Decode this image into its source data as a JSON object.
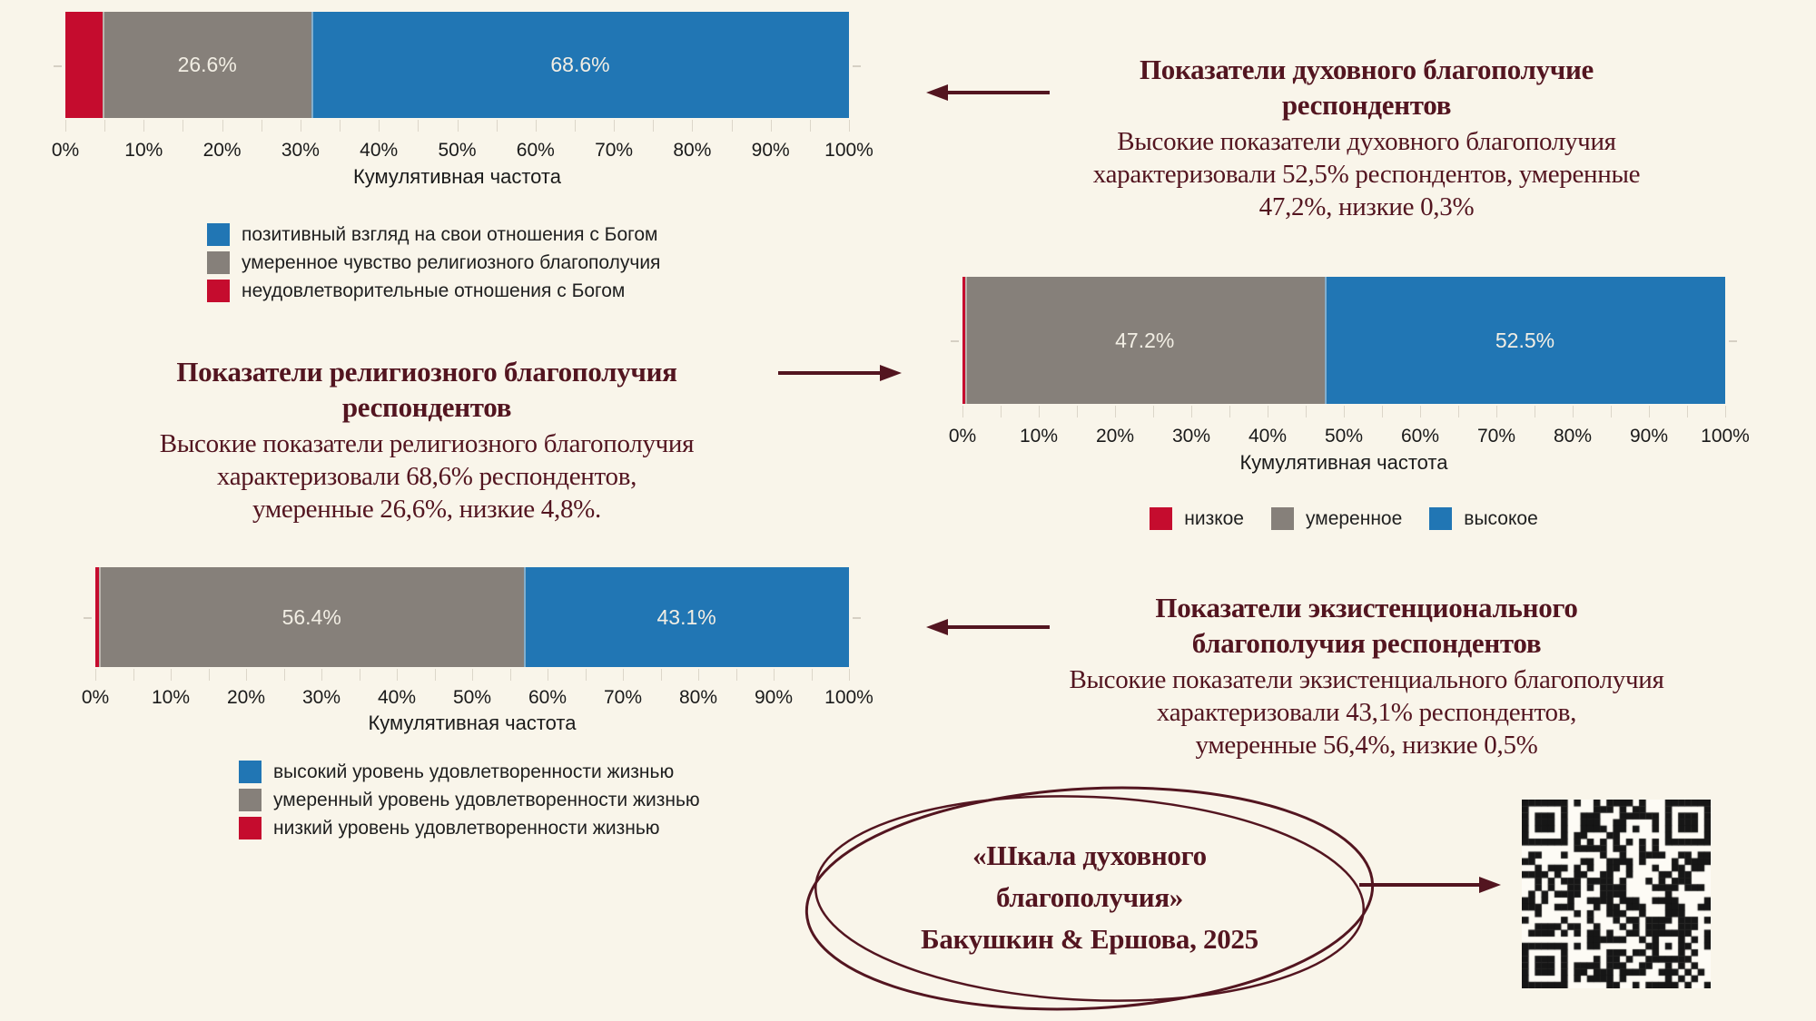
{
  "colors": {
    "background": "#f9f5ea",
    "blue": "#2176b4",
    "gray": "#86807a",
    "red": "#c50c2e",
    "maroon": "#531520",
    "bar_label": "#f2eee4",
    "tick_text": "#1a1a1a"
  },
  "icons": {
    "arrow_left": "arrow-left-icon",
    "arrow_right": "arrow-right-icon",
    "oval": "hand-drawn-oval",
    "qr": "qr-code"
  },
  "chart_data": [
    {
      "id": "religious-wellbeing",
      "type": "bar",
      "orientation": "horizontal_stacked",
      "xlabel": "Кумулятивная частота",
      "xlim": [
        0,
        100
      ],
      "x_tick_labels": [
        "0%",
        "10%",
        "20%",
        "30%",
        "40%",
        "50%",
        "60%",
        "70%",
        "80%",
        "90%",
        "100%"
      ],
      "segments": [
        {
          "name": "неудовлетворительные отношения с Богом",
          "value": 4.8,
          "color": "red",
          "label": ""
        },
        {
          "name": "умеренное чувство религиозного благополучия",
          "value": 26.6,
          "color": "gray",
          "label": "26.6%"
        },
        {
          "name": "позитивный взгляд на свои отношения с Богом",
          "value": 68.6,
          "color": "blue",
          "label": "68.6%"
        }
      ],
      "legend": {
        "layout": "vertical",
        "items": [
          {
            "color": "blue",
            "label": "позитивный взгляд на свои отношения с Богом"
          },
          {
            "color": "gray",
            "label": "умеренное чувство религиозного благополучия"
          },
          {
            "color": "red",
            "label": "неудовлетворительные отношения с Богом"
          }
        ]
      }
    },
    {
      "id": "spiritual-wellbeing",
      "type": "bar",
      "orientation": "horizontal_stacked",
      "xlabel": "Кумулятивная частота",
      "xlim": [
        0,
        100
      ],
      "x_tick_labels": [
        "0%",
        "10%",
        "20%",
        "30%",
        "40%",
        "50%",
        "60%",
        "70%",
        "80%",
        "90%",
        "100%"
      ],
      "segments": [
        {
          "name": "низкое",
          "value": 0.3,
          "color": "red",
          "label": ""
        },
        {
          "name": "умеренное",
          "value": 47.2,
          "color": "gray",
          "label": "47.2%"
        },
        {
          "name": "высокое",
          "value": 52.5,
          "color": "blue",
          "label": "52.5%"
        }
      ],
      "legend": {
        "layout": "horizontal",
        "items": [
          {
            "color": "red",
            "label": "низкое"
          },
          {
            "color": "gray",
            "label": "умеренное"
          },
          {
            "color": "blue",
            "label": "высокое"
          }
        ]
      }
    },
    {
      "id": "existential-wellbeing",
      "type": "bar",
      "orientation": "horizontal_stacked",
      "xlabel": "Кумулятивная частота",
      "xlim": [
        0,
        100
      ],
      "x_tick_labels": [
        "0%",
        "10%",
        "20%",
        "30%",
        "40%",
        "50%",
        "60%",
        "70%",
        "80%",
        "90%",
        "100%"
      ],
      "segments": [
        {
          "name": "низкий уровень удовлетворенности жизнью",
          "value": 0.5,
          "color": "red",
          "label": ""
        },
        {
          "name": "умеренный уровень удовлетворенности жизнью",
          "value": 56.4,
          "color": "gray",
          "label": "56.4%"
        },
        {
          "name": "высокий уровень удовлетворенности жизнью",
          "value": 43.1,
          "color": "blue",
          "label": "43.1%"
        }
      ],
      "legend": {
        "layout": "vertical",
        "items": [
          {
            "color": "blue",
            "label": "высокий уровень удовлетворенности жизнью"
          },
          {
            "color": "gray",
            "label": "умеренный уровень удовлетворенности жизнью"
          },
          {
            "color": "red",
            "label": "низкий уровень удовлетворенности жизнью"
          }
        ]
      }
    }
  ],
  "annotations": {
    "spiritual": {
      "title_lines": [
        "Показатели духовного благополучие",
        "респондентов"
      ],
      "body_lines": [
        "Высокие показатели духовного благополучия",
        "характеризовали 52,5% респондентов, умеренные",
        "47,2%, низкие 0,3%"
      ]
    },
    "religious": {
      "title_lines": [
        "Показатели религиозного благополучия",
        "респондентов"
      ],
      "body_lines": [
        "Высокие показатели религиозного благополучия",
        "характеризовали 68,6% респондентов,",
        "умеренные 26,6%, низкие 4,8%."
      ]
    },
    "existential": {
      "title_lines": [
        "Показатели экзистенционального",
        "благополучия респондентов"
      ],
      "body_lines": [
        "Высокие показатели экзистенциального благополучия",
        "характеризовали 43,1% респондентов,",
        "умеренные 56,4%, низкие 0,5%"
      ]
    }
  },
  "citation": {
    "lines": [
      "«Шкала духовного",
      "благополучия»",
      "Бакушкин & Ершова, 2025"
    ]
  }
}
